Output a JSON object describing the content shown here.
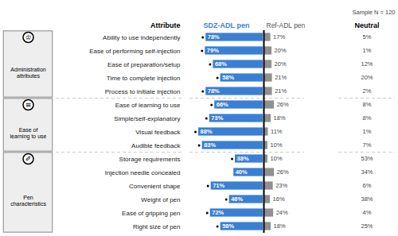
{
  "chart_data": {
    "type": "bar",
    "orientation": "horizontal",
    "ylabel": "Attribute",
    "annotations": [
      "Sample N = 120"
    ],
    "categories": [
      "Ability to use independently",
      "Ease of performing self-injection",
      "Ease of preparation/setup",
      "Time to complete injection",
      "Process to initiate injection",
      "Ease of learning to use",
      "Simple/self-explanatory",
      "Visual feedback",
      "Audible feedback",
      "Storage requirements",
      "Injection needle concealed",
      "Convenient shape",
      "Weight of pen",
      "Ease of gripping pen",
      "Right size of pen"
    ],
    "series": [
      {
        "name": "SDZ-ADL pen",
        "color": "#3a7fd4",
        "values": [
          78,
          79,
          68,
          58,
          78,
          66,
          73,
          88,
          83,
          38,
          40,
          71,
          46,
          72,
          58
        ],
        "value_labels": [
          "78%",
          "79%",
          "68%",
          "58%",
          "78%",
          "66%",
          "73%",
          "88%",
          "83%",
          "38%",
          "40%",
          "71%",
          "46%",
          "72%",
          "58%"
        ]
      },
      {
        "name": "Ref-ADL pen",
        "color": "#909090",
        "values": [
          17,
          20,
          20,
          21,
          21,
          26,
          18,
          11,
          10,
          10,
          26,
          23,
          16,
          24,
          18
        ],
        "value_labels": [
          "17%",
          "20%",
          "20%",
          "21%",
          "21%",
          "26%",
          "18%",
          "11%",
          "10%",
          "10%",
          "26%",
          "23%",
          "16%",
          "24%",
          "18%"
        ]
      },
      {
        "name": "Neutral",
        "type": "text",
        "values": [
          5,
          1,
          12,
          20,
          2,
          8,
          8,
          1,
          7,
          53,
          34,
          6,
          38,
          4,
          25
        ],
        "value_labels": [
          "5%",
          "1%",
          "12%",
          "20%",
          "2%",
          "8%",
          "8%",
          "1%",
          "7%",
          "53%",
          "34%",
          "6%",
          "38%",
          "4%",
          "25%"
        ]
      }
    ],
    "star": [
      true,
      true,
      true,
      true,
      true,
      true,
      true,
      true,
      true,
      true,
      false,
      true,
      true,
      true,
      true
    ],
    "group": [
      0,
      0,
      0,
      0,
      0,
      1,
      1,
      1,
      1,
      2,
      2,
      2,
      2,
      2,
      2
    ],
    "group_labels": [
      "Administration\nattributes",
      "Ease of\nlearning to use",
      "Pen\ncharacteristics"
    ],
    "group_icons": [
      "♔",
      "≡",
      "✐"
    ],
    "xlim": [
      0,
      100
    ],
    "data_labels": true,
    "tick_labels": "y",
    "grid": false
  }
}
